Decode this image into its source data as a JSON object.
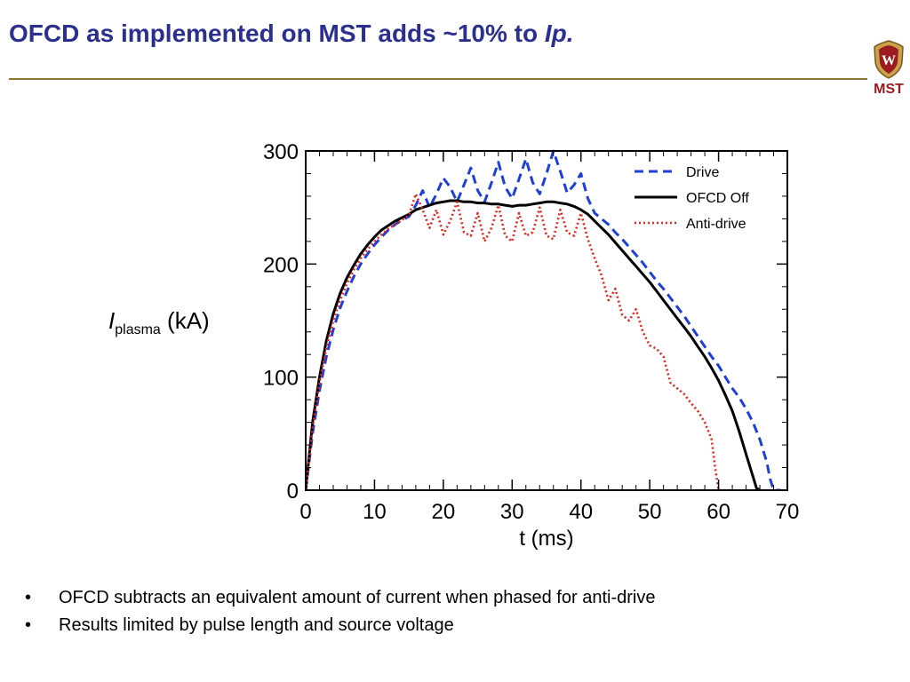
{
  "slide": {
    "title_main": "OFCD as implemented on MST adds ~10% to ",
    "title_italic": "Ip.",
    "logo_text": "MST",
    "logo_letter": "W",
    "ylabel_italic": "I",
    "ylabel_sub": "plasma",
    "ylabel_unit": " (kA)",
    "bullets": [
      "OFCD subtracts an equivalent amount of current when phased for anti-drive",
      "Results limited by pulse length and source voltage"
    ],
    "bullet_symbol": "•"
  },
  "colors": {
    "title": "#2b2f8e",
    "rule": "#8a7536",
    "logo": "#9b1c20",
    "drive": "#1f3fd9",
    "ofcd_off": "#000000",
    "anti_drive": "#e0241f"
  },
  "chart_data": {
    "type": "line",
    "xlabel": "t (ms)",
    "ylabel": "",
    "xlim": [
      0,
      70
    ],
    "ylim": [
      0,
      300
    ],
    "xticks": [
      0,
      10,
      20,
      30,
      40,
      50,
      60,
      70
    ],
    "yticks": [
      0,
      100,
      200,
      300
    ],
    "legend_position": "top-right",
    "series": [
      {
        "name": "Drive",
        "style": "dashed",
        "x": [
          0,
          1,
          2,
          3,
          4,
          5,
          6,
          7,
          8,
          9,
          10,
          11,
          12,
          13,
          14,
          15,
          16,
          17,
          18,
          19,
          20,
          21,
          22,
          23,
          24,
          25,
          26,
          27,
          28,
          29,
          30,
          31,
          32,
          33,
          34,
          35,
          36,
          37,
          38,
          39,
          40,
          41,
          42,
          43,
          44,
          45,
          46,
          47,
          48,
          49,
          50,
          51,
          52,
          53,
          54,
          55,
          56,
          57,
          58,
          59,
          60,
          61,
          62,
          63,
          64,
          65,
          66,
          67,
          67.5,
          68,
          68.5,
          69
        ],
        "y": [
          0,
          50,
          88,
          118,
          142,
          161,
          176,
          189,
          200,
          209,
          217,
          224,
          230,
          235,
          239,
          242,
          252,
          265,
          250,
          262,
          276,
          268,
          255,
          270,
          285,
          265,
          255,
          272,
          290,
          268,
          258,
          275,
          293,
          272,
          262,
          280,
          300,
          282,
          263,
          270,
          280,
          258,
          245,
          240,
          235,
          228,
          222,
          215,
          208,
          201,
          193,
          185,
          178,
          170,
          162,
          154,
          145,
          136,
          127,
          118,
          110,
          100,
          90,
          82,
          72,
          60,
          45,
          25,
          10,
          0,
          0,
          0
        ]
      },
      {
        "name": "OFCD Off",
        "style": "solid",
        "x": [
          0,
          1,
          2,
          3,
          4,
          5,
          6,
          7,
          8,
          9,
          10,
          11,
          12,
          13,
          14,
          15,
          16,
          17,
          18,
          19,
          20,
          21,
          22,
          23,
          24,
          25,
          26,
          27,
          28,
          29,
          30,
          31,
          32,
          33,
          34,
          35,
          36,
          37,
          38,
          39,
          40,
          41,
          42,
          43,
          44,
          45,
          46,
          47,
          48,
          49,
          50,
          51,
          52,
          53,
          54,
          55,
          56,
          57,
          58,
          59,
          60,
          61,
          62,
          63,
          64,
          65,
          65.5,
          66
        ],
        "y": [
          0,
          60,
          100,
          132,
          156,
          174,
          188,
          199,
          209,
          217,
          224,
          230,
          234,
          238,
          241,
          244,
          248,
          250,
          252,
          254,
          255,
          256,
          256,
          255,
          255,
          254,
          254,
          253,
          253,
          252,
          251,
          252,
          252,
          253,
          254,
          255,
          255,
          254,
          253,
          251,
          248,
          244,
          238,
          232,
          226,
          219,
          212,
          205,
          198,
          191,
          184,
          176,
          168,
          160,
          152,
          144,
          136,
          127,
          118,
          108,
          97,
          84,
          70,
          52,
          32,
          12,
          2,
          0
        ]
      },
      {
        "name": "Anti-drive",
        "style": "dotted",
        "x": [
          0,
          1,
          2,
          3,
          4,
          5,
          6,
          7,
          8,
          9,
          10,
          11,
          12,
          13,
          14,
          15,
          16,
          17,
          18,
          19,
          20,
          21,
          22,
          23,
          24,
          25,
          26,
          27,
          28,
          29,
          30,
          31,
          32,
          33,
          34,
          35,
          36,
          37,
          38,
          39,
          40,
          41,
          42,
          43,
          44,
          45,
          46,
          47,
          48,
          49,
          50,
          51,
          52,
          53,
          54,
          55,
          56,
          57,
          58,
          59,
          59.5,
          60,
          61,
          62
        ],
        "y": [
          0,
          55,
          95,
          126,
          150,
          168,
          183,
          195,
          205,
          213,
          220,
          226,
          231,
          235,
          239,
          243,
          262,
          248,
          232,
          248,
          226,
          238,
          255,
          228,
          225,
          245,
          220,
          232,
          252,
          225,
          220,
          245,
          225,
          228,
          250,
          225,
          222,
          248,
          228,
          225,
          245,
          222,
          205,
          190,
          168,
          178,
          155,
          150,
          160,
          140,
          128,
          125,
          118,
          95,
          90,
          85,
          77,
          70,
          60,
          45,
          20,
          0,
          0,
          0
        ]
      }
    ]
  }
}
